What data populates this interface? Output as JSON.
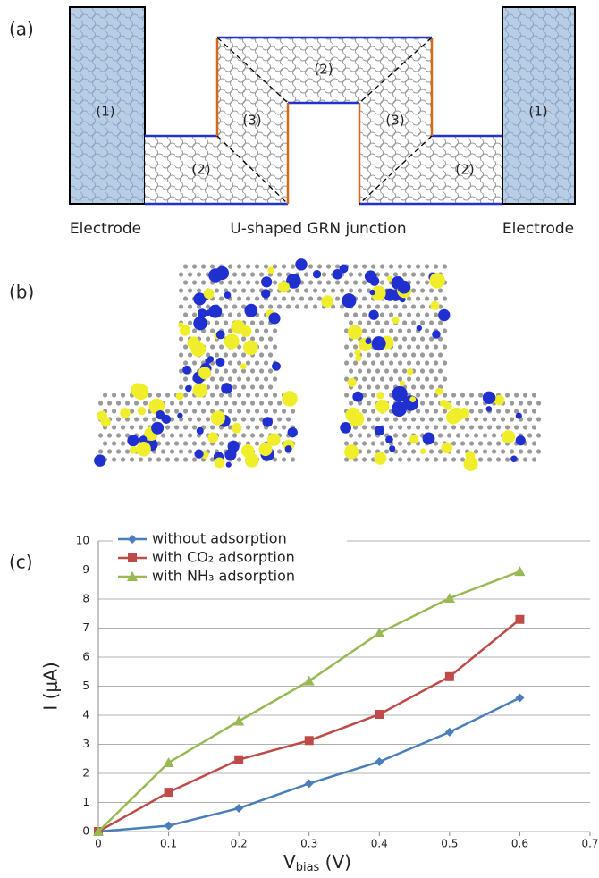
{
  "panels": {
    "a": {
      "label": "(a)",
      "region_1": "(1)",
      "region_2": "(2)",
      "region_3": "(3)",
      "left_caption": "Electrode",
      "center_caption": "U-shaped GRN junction",
      "right_caption": "Electrode"
    },
    "b": {
      "label": "(b)"
    },
    "c": {
      "label": "(c)"
    }
  },
  "chart_data": {
    "type": "line",
    "x": [
      0,
      0.1,
      0.2,
      0.3,
      0.4,
      0.5,
      0.6
    ],
    "series": [
      {
        "name": "without adsorption",
        "color": "#4a7ebb",
        "marker": "diamond",
        "values": [
          0,
          0.2,
          0.8,
          1.65,
          2.4,
          3.42,
          4.6
        ]
      },
      {
        "name": "with CO₂ adsorption",
        "color": "#be4b48",
        "marker": "square",
        "values": [
          0,
          1.35,
          2.47,
          3.13,
          4.03,
          5.33,
          7.3
        ]
      },
      {
        "name": "with NH₃ adsorption",
        "color": "#98b954",
        "marker": "triangle",
        "values": [
          0,
          2.37,
          3.8,
          5.18,
          6.83,
          8.03,
          8.95
        ]
      }
    ],
    "xlim": [
      0,
      0.7
    ],
    "xticks": [
      0,
      0.1,
      0.2,
      0.3,
      0.4,
      0.5,
      0.6,
      0.7
    ],
    "ylim": [
      0,
      10
    ],
    "yticks": [
      0,
      1,
      2,
      3,
      4,
      5,
      6,
      7,
      8,
      9,
      10
    ],
    "y_label": "I (μA)",
    "x_label": {
      "main": "V",
      "sub": "bias",
      "rest": " (V)"
    },
    "grid": true,
    "legend": "top-left"
  }
}
